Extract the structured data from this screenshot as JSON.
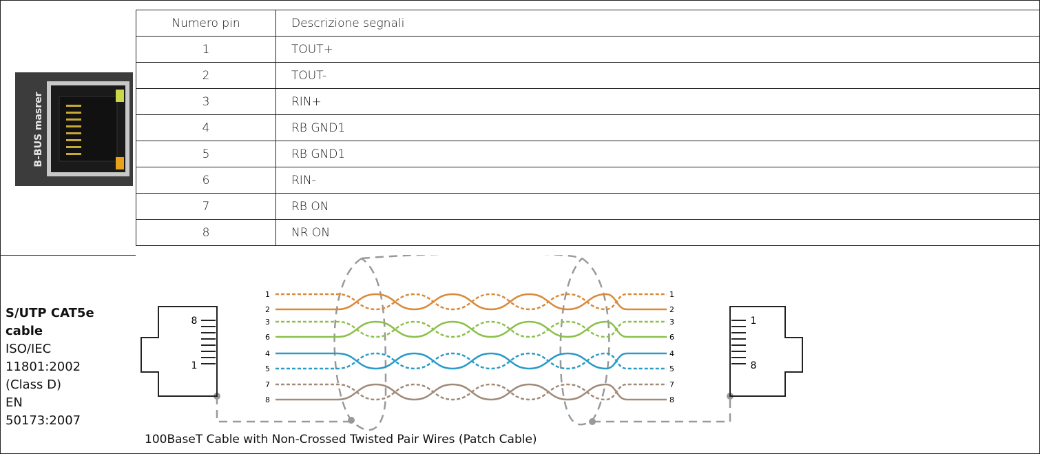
{
  "table": {
    "header": [
      "Numero pin",
      "Descrizione segnali"
    ],
    "rows": [
      [
        "1",
        "TOUT+"
      ],
      [
        "2",
        "TOUT-"
      ],
      [
        "3",
        "RIN+"
      ],
      [
        "4",
        "RB GND1"
      ],
      [
        "5",
        "RB GND1"
      ],
      [
        "6",
        "RIN-"
      ],
      [
        "7",
        "RB ON"
      ],
      [
        "8",
        "NR ON"
      ]
    ]
  },
  "connector_label": "B-BUS masrer",
  "cable_spec": [
    "S/UTP CAT5e",
    "cable",
    "ISO/IEC",
    "11801:2002",
    "(Class D)",
    "EN",
    "50173:2007"
  ],
  "diagram": {
    "caption": "100BaseT Cable with Non-Crossed Twisted Pair Wires (Patch Cable)",
    "left_jack_labels": [
      "8",
      "1"
    ],
    "right_jack_labels": [
      "1",
      "8"
    ],
    "wires": [
      "1",
      "2",
      "3",
      "6",
      "4",
      "5",
      "7",
      "8"
    ]
  }
}
